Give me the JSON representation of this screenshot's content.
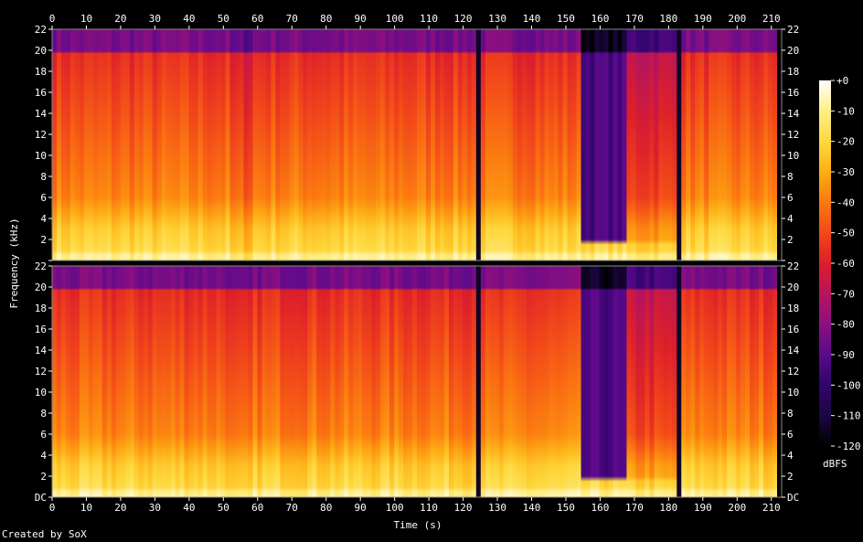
{
  "footer": {
    "credit": "Created by SoX"
  },
  "chart_data": {
    "type": "heatmap",
    "title": "",
    "xlabel": "Time (s)",
    "ylabel": "Frequency (kHz)",
    "xlim": [
      0,
      213
    ],
    "ylim": [
      0,
      22
    ],
    "x_ticks": [
      "0",
      "10",
      "20",
      "30",
      "40",
      "50",
      "60",
      "70",
      "80",
      "90",
      "100",
      "110",
      "120",
      "130",
      "140",
      "150",
      "160",
      "170",
      "180",
      "190",
      "200",
      "210"
    ],
    "y_ticks": [
      "DC",
      "2",
      "4",
      "6",
      "8",
      "10",
      "12",
      "14",
      "16",
      "18",
      "20",
      "22"
    ],
    "channels": 2,
    "colorbar": {
      "label": "dBFS",
      "range": [
        -120,
        0
      ],
      "ticks": [
        "+0",
        "-10",
        "-20",
        "-30",
        "-40",
        "-50",
        "-60",
        "-70",
        "-80",
        "-90",
        "-100",
        "-110",
        "-120"
      ]
    },
    "colormap": [
      "#000000",
      "#1a0640",
      "#32046c",
      "#5a0a8c",
      "#8a0f80",
      "#b8145c",
      "#dc1e2a",
      "#f2461a",
      "#fb7a10",
      "#fdae14",
      "#fed73c",
      "#ffee88",
      "#ffffff"
    ],
    "time_segments": [
      {
        "t0": 0,
        "t1": 20,
        "level": "loud"
      },
      {
        "t0": 20,
        "t1": 52,
        "level": "loud"
      },
      {
        "t0": 52,
        "t1": 58,
        "level": "dip"
      },
      {
        "t0": 58,
        "t1": 124,
        "level": "loud"
      },
      {
        "t0": 124,
        "t1": 125.5,
        "level": "gap"
      },
      {
        "t0": 125.5,
        "t1": 155,
        "level": "loud"
      },
      {
        "t0": 155,
        "t1": 168,
        "level": "lowpass",
        "cutoff_khz": 1.5
      },
      {
        "t0": 168,
        "t1": 182,
        "level": "medium"
      },
      {
        "t0": 182,
        "t1": 183.5,
        "level": "gap"
      },
      {
        "t0": 183.5,
        "t1": 212,
        "level": "loud"
      }
    ]
  }
}
